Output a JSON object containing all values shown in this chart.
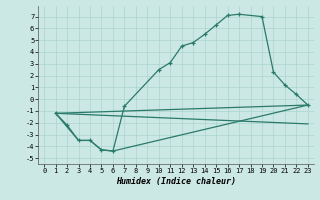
{
  "xlabel": "Humidex (Indice chaleur)",
  "bg_color": "#cce8e4",
  "grid_color": "#aad4cc",
  "line_color": "#2a7a6a",
  "xlim": [
    -0.5,
    23.5
  ],
  "ylim": [
    -5.5,
    7.9
  ],
  "xticks": [
    0,
    1,
    2,
    3,
    4,
    5,
    6,
    7,
    8,
    9,
    10,
    11,
    12,
    13,
    14,
    15,
    16,
    17,
    18,
    19,
    20,
    21,
    22,
    23
  ],
  "yticks": [
    -5,
    -4,
    -3,
    -2,
    -1,
    0,
    1,
    2,
    3,
    4,
    5,
    6,
    7
  ],
  "main_x": [
    1,
    2,
    3,
    4,
    5,
    6,
    7,
    10,
    11,
    12,
    13,
    14,
    15,
    16,
    17,
    19,
    20,
    21,
    22,
    23
  ],
  "main_y": [
    -1.2,
    -2.2,
    -3.5,
    -3.5,
    -4.3,
    -4.4,
    -0.6,
    2.5,
    3.1,
    4.5,
    4.8,
    5.5,
    6.3,
    7.1,
    7.2,
    7.0,
    2.3,
    1.2,
    0.4,
    -0.5
  ],
  "line2_x": [
    1,
    3,
    4,
    5,
    6,
    23
  ],
  "line2_y": [
    -1.2,
    -3.5,
    -3.5,
    -4.3,
    -4.4,
    -0.5
  ],
  "line3_x": [
    1,
    23
  ],
  "line3_y": [
    -1.2,
    -0.5
  ],
  "line4_x": [
    1,
    23
  ],
  "line4_y": [
    -1.2,
    -2.1
  ]
}
